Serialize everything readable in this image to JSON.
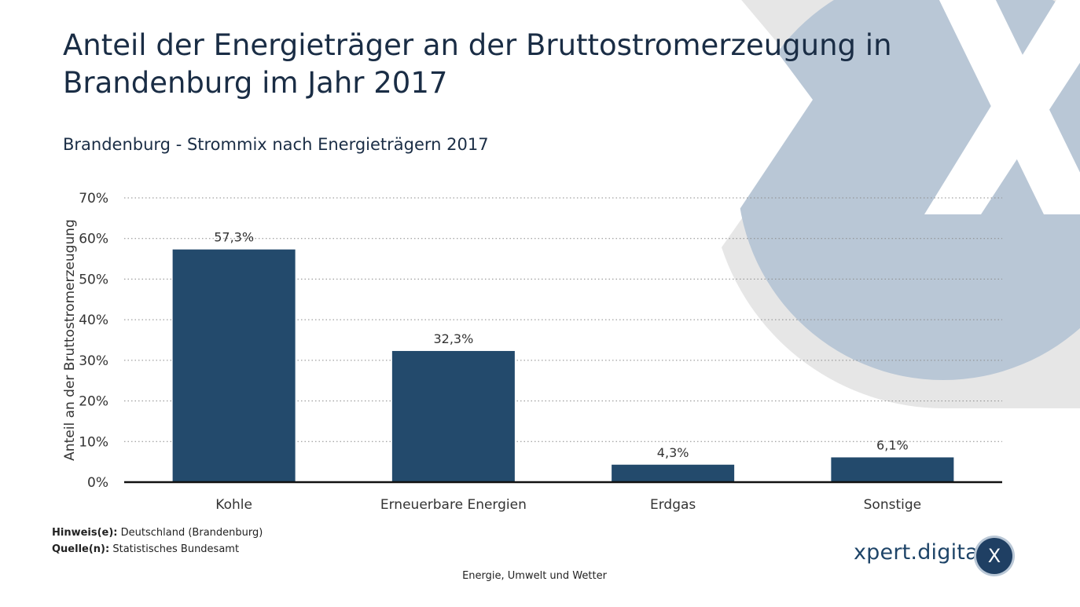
{
  "header": {
    "title": "Anteil der Energieträger an der Bruttostromerzeugung in Brandenburg im Jahr 2017",
    "subtitle": "Brandenburg - Strommix nach Energieträgern 2017"
  },
  "chart_data": {
    "type": "bar",
    "title": "Anteil der Energieträger an der Bruttostromerzeugung in Brandenburg im Jahr 2017",
    "subtitle": "Brandenburg - Strommix nach Energieträgern 2017",
    "categories": [
      "Kohle",
      "Erneuerbare Energien",
      "Erdgas",
      "Sonstige"
    ],
    "values": [
      57.3,
      32.3,
      4.3,
      6.1
    ],
    "value_labels": [
      "57,3%",
      "32,3%",
      "4,3%",
      "6,1%"
    ],
    "xlabel": "",
    "ylabel": "Anteil an der Bruttostromerzeugung",
    "ylim": [
      0,
      70
    ],
    "yticks": [
      0,
      10,
      20,
      30,
      40,
      50,
      60,
      70
    ],
    "ytick_labels": [
      "0%",
      "10%",
      "20%",
      "30%",
      "40%",
      "50%",
      "60%",
      "70%"
    ],
    "grid": true,
    "bar_color": "#234a6c"
  },
  "footnotes": {
    "note_label": "Hinweis(e):",
    "note_text": "Deutschland (Brandenburg)",
    "source_label": "Quelle(n):",
    "source_text": "Statistisches Bundesamt"
  },
  "footer": {
    "category": "Energie, Umwelt und Wetter"
  },
  "brand": {
    "name": "xpert.digital",
    "badge": "X"
  },
  "colors": {
    "text": "#1a2d45",
    "bar": "#234a6c",
    "logo_circle": "#b9c7d6",
    "logo_ring": "#e6e6e6"
  }
}
